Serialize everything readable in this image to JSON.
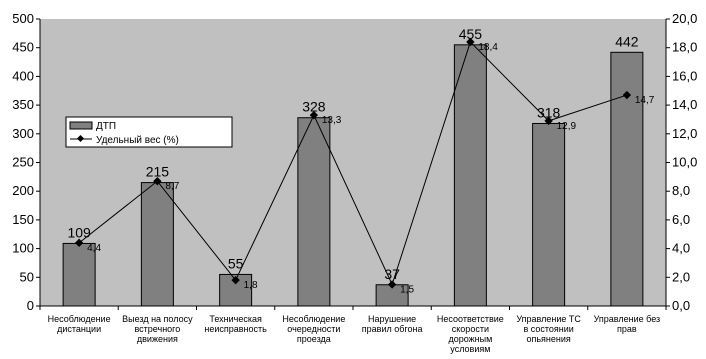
{
  "chart_data": {
    "type": "bar",
    "categories": [
      [
        "Несоблюдение",
        "дистанции"
      ],
      [
        "Выезд на полосу",
        "встречного",
        "движения"
      ],
      [
        "Техническая",
        "неисправность"
      ],
      [
        "Несоблюдение",
        "очередности",
        "проезда"
      ],
      [
        "Нарушение",
        "правил обгона"
      ],
      [
        "Несоответствие",
        "скорости",
        "дорожным",
        "условиям"
      ],
      [
        "Управление ТС",
        "в состоянии",
        "опьянения"
      ],
      [
        "Управление без",
        "прав"
      ]
    ],
    "series": [
      {
        "name": "ДТП",
        "type": "bar",
        "axis": "left",
        "values": [
          109,
          215,
          55,
          328,
          37,
          455,
          318,
          442
        ],
        "labels": [
          "109",
          "215",
          "55",
          "328",
          "37",
          "455",
          "318",
          "442"
        ],
        "color": "#808080"
      },
      {
        "name": "Удельный вес (%)",
        "type": "line",
        "axis": "right",
        "values": [
          4.4,
          8.7,
          1.8,
          13.3,
          1.5,
          18.4,
          12.9,
          14.7
        ],
        "labels": [
          "4,4",
          "8,7",
          "1,8",
          "13,3",
          "1,5",
          "18,4",
          "12,9",
          "14,7"
        ],
        "color": "#000000"
      }
    ],
    "y_left": {
      "min": 0,
      "max": 500,
      "step": 50,
      "ticks": [
        "0",
        "50",
        "100",
        "150",
        "200",
        "250",
        "300",
        "350",
        "400",
        "450",
        "500"
      ]
    },
    "y_right": {
      "min": 0,
      "max": 20,
      "step": 2,
      "ticks": [
        "0,0",
        "2,0",
        "4,0",
        "6,0",
        "8,0",
        "10,0",
        "12,0",
        "14,0",
        "16,0",
        "18,0",
        "20,0"
      ]
    },
    "legend": {
      "position": "left-middle"
    },
    "grid": false,
    "plot_background": "#c0c0c0"
  }
}
